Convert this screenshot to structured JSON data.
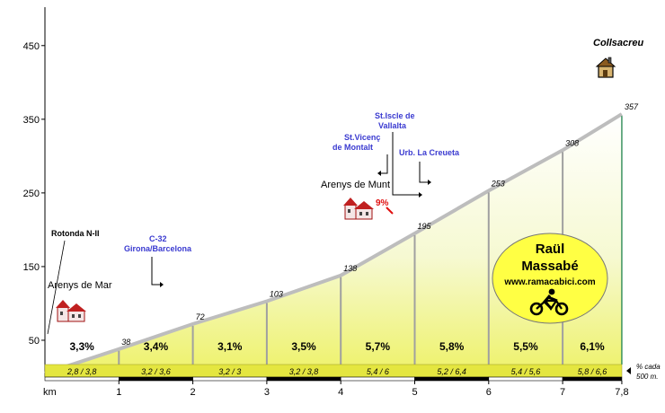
{
  "chart_data": {
    "type": "area",
    "y_unit_label": "km",
    "ylim": [
      0,
      450
    ],
    "yticks": [
      50,
      150,
      250,
      350,
      450
    ],
    "xlim": [
      0,
      7.8
    ],
    "xticks": [
      "1",
      "2",
      "3",
      "4",
      "5",
      "6",
      "7",
      "7,8"
    ],
    "grid": false,
    "profile": [
      {
        "km": 0,
        "alt": 5,
        "label": "5"
      },
      {
        "km": 1,
        "alt": 38,
        "label": "38"
      },
      {
        "km": 2,
        "alt": 72,
        "label": "72"
      },
      {
        "km": 3,
        "alt": 103,
        "label": "103"
      },
      {
        "km": 4,
        "alt": 138,
        "label": "138"
      },
      {
        "km": 5,
        "alt": 195,
        "label": "195"
      },
      {
        "km": 6,
        "alt": 253,
        "label": "253"
      },
      {
        "km": 7,
        "alt": 308,
        "label": "308"
      },
      {
        "km": 7.8,
        "alt": 357,
        "label": "357"
      }
    ],
    "segment_gradients": [
      "3,3%",
      "3,4%",
      "3,1%",
      "3,5%",
      "5,7%",
      "5,8%",
      "5,5%",
      "6,1%"
    ],
    "half_km_gradients": [
      "2,8  /  3,8",
      "3,2  /  3,6",
      "3,2  /  3",
      "3,2  /  3,8",
      "5,4  /  6",
      "5,2  /  6,4",
      "5,4  /  5,6",
      "5,8  /  6,6"
    ],
    "half_km_note": [
      "% cada",
      "500 m."
    ],
    "summit": "Collsacreu",
    "max_gradient": {
      "km": 4.72,
      "label": "9%"
    },
    "places": [
      {
        "name": "Arenys de Mar",
        "km": 0.1
      },
      {
        "name": "Arenys de Munt",
        "km": 4.35
      }
    ],
    "junctions": [
      {
        "lines": [
          "Rotonda N-II"
        ],
        "km": 0,
        "color": "#000000"
      },
      {
        "lines": [
          "C-32",
          "Girona/Barcelona"
        ],
        "km": 1.55,
        "color": "#3a3ad0"
      },
      {
        "lines": [
          "St.Iscle de",
          "Vallalta"
        ],
        "km": 5.2,
        "color": "#3a3ad0"
      },
      {
        "lines": [
          "St.Vicenç",
          "de Montalt"
        ],
        "km": 4.8,
        "color": "#3a3ad0"
      },
      {
        "lines": [
          "Urb. La Creueta"
        ],
        "km": 5.3,
        "color": "#3a3ad0"
      }
    ],
    "signature": {
      "name_line1": "Raül",
      "name_line2": "Massabé",
      "url": "www.ramacabici.com"
    }
  }
}
